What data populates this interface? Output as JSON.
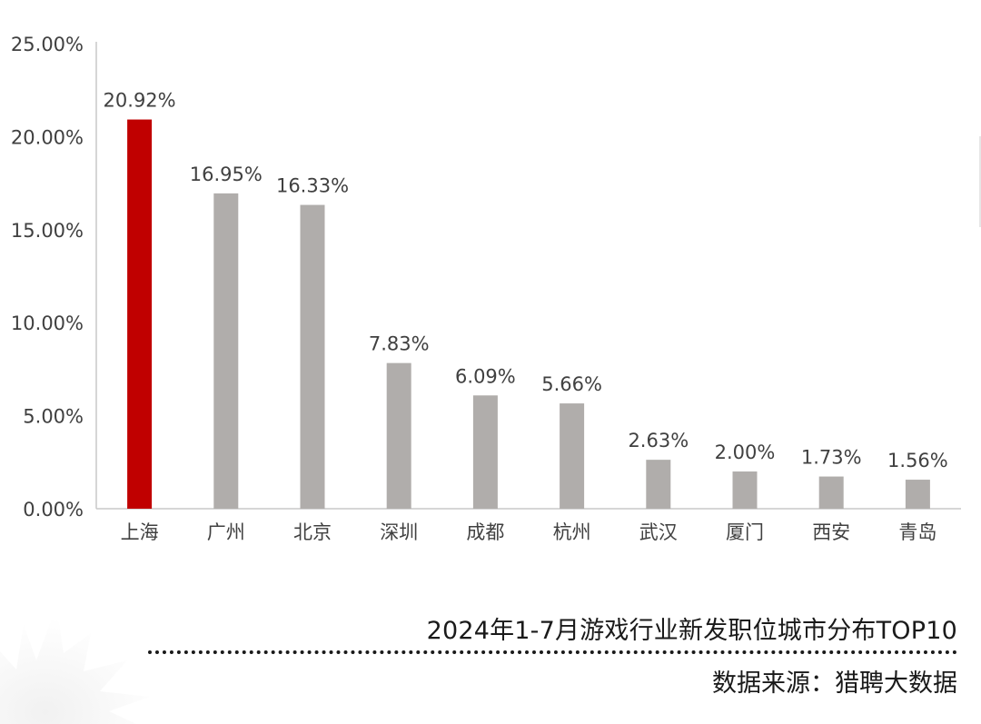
{
  "chart_data": {
    "type": "bar",
    "categories": [
      "上海",
      "广州",
      "北京",
      "深圳",
      "成都",
      "杭州",
      "武汉",
      "厦门",
      "西安",
      "青岛"
    ],
    "values": [
      20.92,
      16.95,
      16.33,
      7.83,
      6.09,
      5.66,
      2.63,
      2.0,
      1.73,
      1.56
    ],
    "value_labels": [
      "20.92%",
      "16.95%",
      "16.33%",
      "7.83%",
      "6.09%",
      "5.66%",
      "2.63%",
      "2.00%",
      "1.73%",
      "1.56%"
    ],
    "ylim": [
      0,
      25
    ],
    "yticks": [
      0,
      5,
      10,
      15,
      20,
      25
    ],
    "ytick_labels": [
      "0.00%",
      "5.00%",
      "10.00%",
      "15.00%",
      "20.00%",
      "25.00%"
    ],
    "highlight_index": 0,
    "colors": {
      "highlight": "#c00000",
      "bar": "#b0adab",
      "axis": "#c8c8c8",
      "text": "#404040"
    },
    "grid": false,
    "legend": "none",
    "title": "2024年1-7月游戏行业新发职位城市分布TOP10",
    "xlabel": "",
    "ylabel": ""
  },
  "caption": {
    "title": "2024年1-7月游戏行业新发职位城市分布TOP10",
    "source": "数据来源：猎聘大数据"
  }
}
